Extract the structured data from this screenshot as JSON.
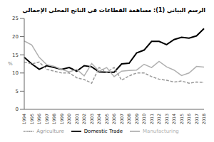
{
  "chart_data": {
    "type": "line",
    "title": "الرسم البياني (1): مساهمة القطاعات في الناتج المحلي الإجمالي",
    "y_label": "%",
    "categories": [
      "1994",
      "1995",
      "1996",
      "1997",
      "1998",
      "1999",
      "2000",
      "2001",
      "2002",
      "2003",
      "2004",
      "2005",
      "2006",
      "2007",
      "2008",
      "2009",
      "2010",
      "2011",
      "2012",
      "2013",
      "2014",
      "2015",
      "2016",
      "2017",
      "2018"
    ],
    "series": [
      {
        "name": "Domestic Trade",
        "color": "#000000",
        "line_style": "solid",
        "values": [
          14.3,
          12.5,
          11,
          12,
          11.5,
          11,
          11.5,
          10.5,
          12,
          11.7,
          10.3,
          10.2,
          10.2,
          12.5,
          12.7,
          15.5,
          16.3,
          18.7,
          18.7,
          17.8,
          19.2,
          19.8,
          19.6,
          20.2,
          22.2
        ]
      },
      {
        "name": "Agriculture",
        "color": "#999999",
        "line_style": "dashed",
        "values": [
          13,
          12.5,
          13,
          11,
          10.5,
          10,
          10,
          8.7,
          8.2,
          7.2,
          11.5,
          10.2,
          11.5,
          8,
          9.2,
          10,
          10,
          9,
          8.3,
          8,
          7.5,
          7.8,
          7.2,
          7.5,
          7.4
        ]
      },
      {
        "name": "Manufacturing",
        "color": "#b0b0b0",
        "line_style": "solid",
        "values": [
          18.8,
          17.7,
          14.3,
          12.3,
          11.8,
          11,
          10.3,
          11,
          9.2,
          12.6,
          10.5,
          11.5,
          9,
          10.5,
          10.7,
          10.8,
          12.4,
          11.5,
          13.2,
          11.7,
          10.8,
          9.3,
          10,
          11.8,
          11.6
        ]
      }
    ],
    "ylim": [
      0,
      25
    ],
    "yticks": [
      0,
      5,
      10,
      15,
      20,
      25
    ],
    "grid": false,
    "legend": "bottom"
  }
}
